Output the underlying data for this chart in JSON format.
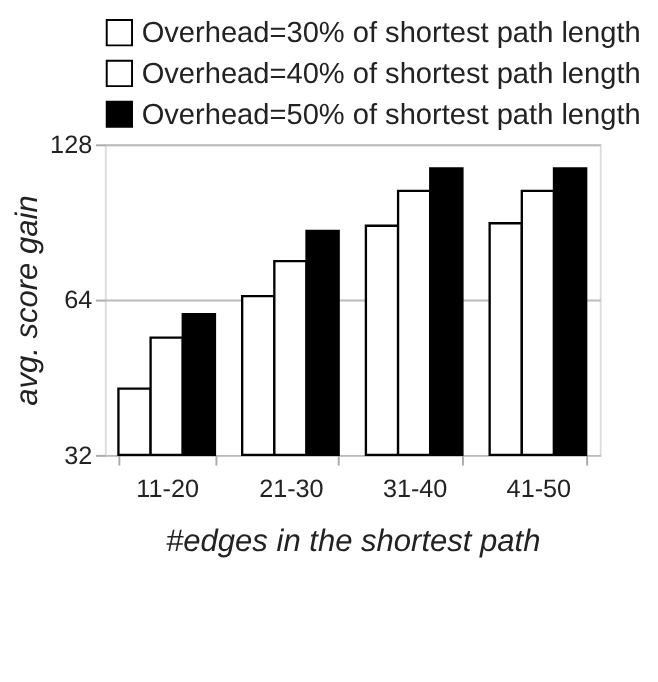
{
  "chart_data": {
    "type": "bar",
    "xlabel": "#edges in the  shortest path",
    "ylabel": "avg. score gain",
    "categories": [
      "11-20",
      "21-30",
      "31-40",
      "41-50"
    ],
    "series": [
      {
        "name": "Overhead=30% of shortest path length",
        "color": "#ffffff",
        "values": [
          43,
          65,
          89,
          90
        ]
      },
      {
        "name": "Overhead=40% of shortest path length",
        "color": "#ffffff",
        "values": [
          54,
          76,
          104,
          104
        ]
      },
      {
        "name": "Overhead=50% of shortest path length",
        "color": "#000000",
        "values": [
          60,
          87,
          115,
          115
        ]
      }
    ],
    "log": "y",
    "ylim": [
      32,
      128
    ],
    "yticks": [
      32,
      64,
      128
    ],
    "grid": "y",
    "legend": "top"
  }
}
